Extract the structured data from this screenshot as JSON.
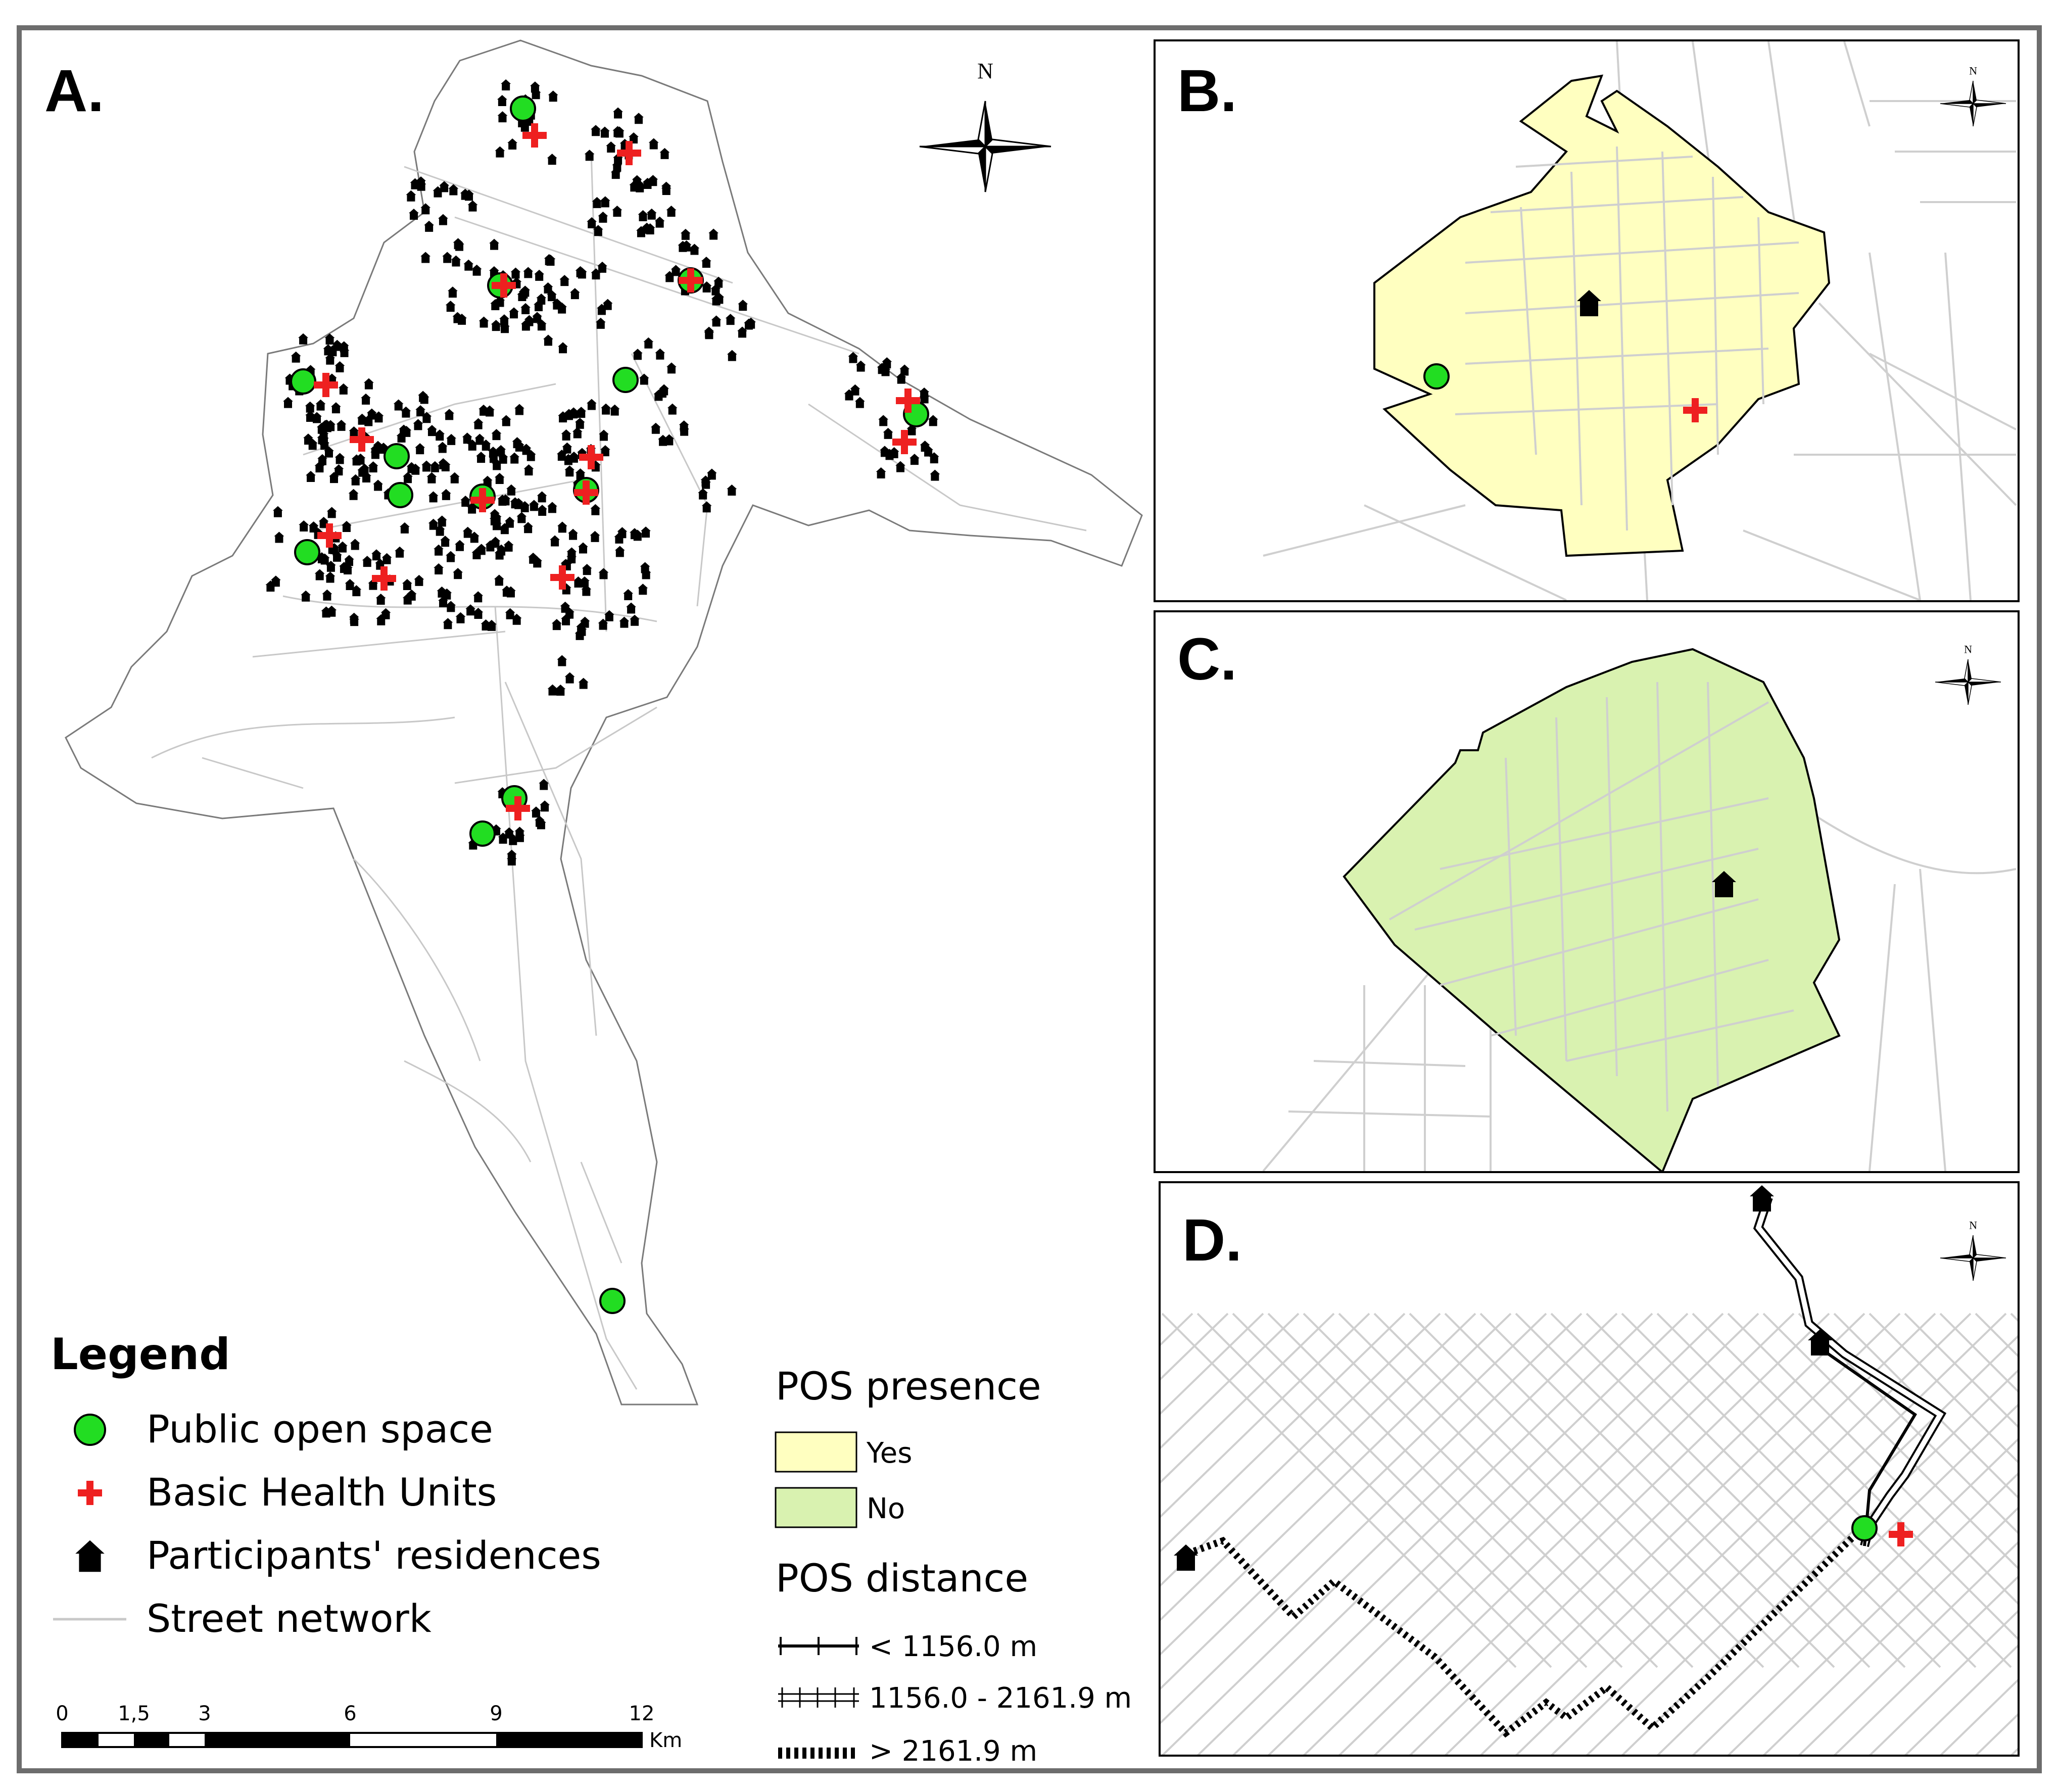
{
  "panels": {
    "a": {
      "label": "A."
    },
    "b": {
      "label": "B."
    },
    "c": {
      "label": "C."
    },
    "d": {
      "label": "D."
    }
  },
  "north": {
    "label": "N"
  },
  "legend": {
    "title": "Legend",
    "items": [
      {
        "label": "Public open space",
        "icon": "green-circle-icon",
        "color": "#22dd22"
      },
      {
        "label": "Basic Health Units",
        "icon": "red-cross-icon",
        "color": "#ee2020"
      },
      {
        "label": "Participants' residences",
        "icon": "house-icon",
        "color": "#000000"
      },
      {
        "label": "Street network",
        "icon": "line-icon",
        "color": "#c8c8c8"
      }
    ]
  },
  "pos_presence": {
    "title": "POS presence",
    "items": [
      {
        "label": "Yes",
        "color": "#ffffc0"
      },
      {
        "label": "No",
        "color": "#d9f2b0"
      }
    ]
  },
  "pos_distance": {
    "title": "POS distance",
    "items": [
      {
        "label": "< 1156.0 m",
        "style": "single-tick"
      },
      {
        "label": "1156.0 - 2161.9 m",
        "style": "double-tick"
      },
      {
        "label": "> 2161.9 m",
        "style": "dotted"
      }
    ]
  },
  "scale_bar": {
    "ticks": [
      "0",
      "1,5",
      "3",
      "6",
      "9",
      "12"
    ],
    "unit": "Km"
  }
}
